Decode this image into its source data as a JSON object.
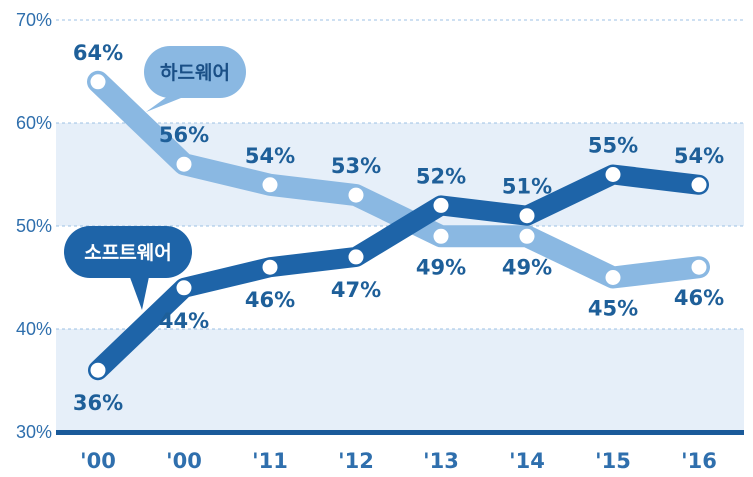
{
  "chart_data": {
    "type": "line",
    "categories": [
      "'00",
      "'00",
      "'11",
      "'12",
      "'13",
      "'14",
      "'15",
      "'16"
    ],
    "y_ticks": [
      "30%",
      "40%",
      "50%",
      "60%",
      "70%"
    ],
    "ylim": [
      30,
      70
    ],
    "grid": true,
    "series": [
      {
        "name": "하드웨어",
        "values": [
          64,
          56,
          54,
          53,
          49,
          49,
          45,
          46
        ],
        "labels": [
          "64%",
          "56%",
          "54%",
          "53%",
          "49%",
          "49%",
          "45%",
          "46%"
        ],
        "color": "#8ab8e2"
      },
      {
        "name": "소프트웨어",
        "values": [
          36,
          44,
          46,
          47,
          52,
          51,
          55,
          54
        ],
        "labels": [
          "36%",
          "44%",
          "46%",
          "47%",
          "52%",
          "51%",
          "55%",
          "54%"
        ],
        "color": "#1e64a8"
      }
    ]
  }
}
